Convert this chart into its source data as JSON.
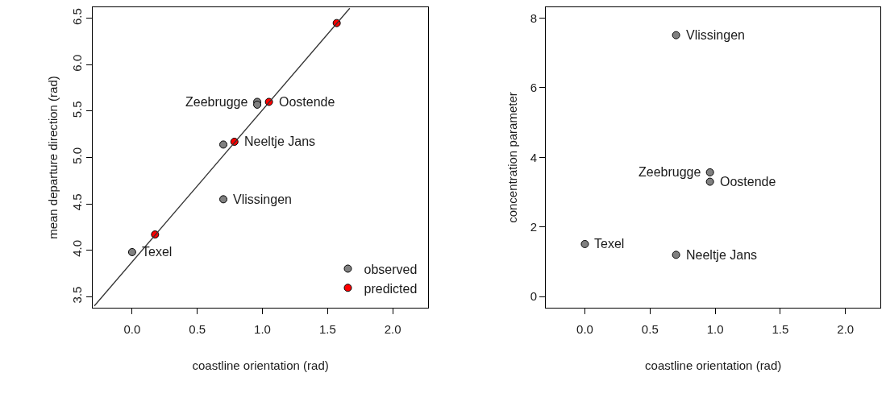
{
  "chart_data": [
    {
      "type": "scatter",
      "xlabel": "coastline orientation (rad)",
      "ylabel": "mean departure direction (rad)",
      "xlim": [
        -0.3,
        2.27
      ],
      "ylim": [
        3.38,
        6.62
      ],
      "xticks": [
        {
          "value": 0,
          "label": "0.0"
        },
        {
          "value": 0.5,
          "label": "0.5"
        },
        {
          "value": 1,
          "label": "1.0"
        },
        {
          "value": 1.5,
          "label": "1.5"
        },
        {
          "value": 2,
          "label": "2.0"
        }
      ],
      "yticks": [
        3.5,
        {
          "value": 4,
          "label": "4.0"
        },
        4.5,
        {
          "value": 5,
          "label": "5.0"
        },
        5.5,
        {
          "value": 6,
          "label": "6.0"
        },
        6.5
      ],
      "grid": false,
      "legend": "bottom right",
      "marker": "circle",
      "series": [
        {
          "name": "observed",
          "color": "#808080",
          "x": [
            0,
            0.7,
            0.96,
            0.96,
            0.7
          ],
          "values": [
            3.98,
            5.14,
            5.6,
            5.57,
            4.55
          ]
        },
        {
          "name": "predicted",
          "color": "#ff0000",
          "x": [
            0.176,
            0.785,
            1.05,
            1.57
          ],
          "values": [
            4.17,
            5.17,
            5.6,
            6.45
          ]
        },
        {
          "type": "line",
          "marker": "none",
          "color": "#333333",
          "x": [
            -0.29,
            1.67
          ],
          "values": [
            3.4,
            6.61
          ]
        }
      ],
      "annotations": [
        {
          "text": "Texel",
          "x": 0,
          "y": 3.98
        },
        {
          "text": "Neeltje Jans",
          "x": 0.785,
          "y": 5.17
        },
        {
          "text": "Zeebrugge",
          "x": 0.96,
          "y": 5.6
        },
        {
          "text": "Oostende",
          "x": 1.05,
          "y": 5.6
        },
        {
          "text": "Vlissingen",
          "x": 0.7,
          "y": 4.55
        }
      ]
    },
    {
      "type": "scatter",
      "xlabel": "coastline orientation (rad)",
      "ylabel": "concentration parameter",
      "xlim": [
        -0.3,
        2.27
      ],
      "ylim": [
        -0.32,
        8.31
      ],
      "xticks": [
        {
          "value": 0,
          "label": "0.0"
        },
        {
          "value": 0.5,
          "label": "0.5"
        },
        {
          "value": 1,
          "label": "1.0"
        },
        {
          "value": 1.5,
          "label": "1.5"
        },
        {
          "value": 2,
          "label": "2.0"
        }
      ],
      "yticks": [
        0,
        2,
        4,
        6,
        8
      ],
      "grid": false,
      "marker": "circle",
      "series": [
        {
          "color": "#808080",
          "x": [
            0,
            0.7,
            0.96,
            0.96,
            0.7
          ],
          "values": [
            1.51,
            1.2,
            3.57,
            3.3,
            7.51
          ]
        }
      ],
      "annotations": [
        {
          "text": "Texel",
          "x": 0,
          "y": 1.51
        },
        {
          "text": "Neeltje Jans",
          "x": 0.7,
          "y": 1.2
        },
        {
          "text": "Zeebrugge",
          "x": 0.96,
          "y": 3.57
        },
        {
          "text": "Oostende",
          "x": 0.96,
          "y": 3.3
        },
        {
          "text": "Vlissingen",
          "x": 0.7,
          "y": 7.51
        }
      ]
    }
  ]
}
